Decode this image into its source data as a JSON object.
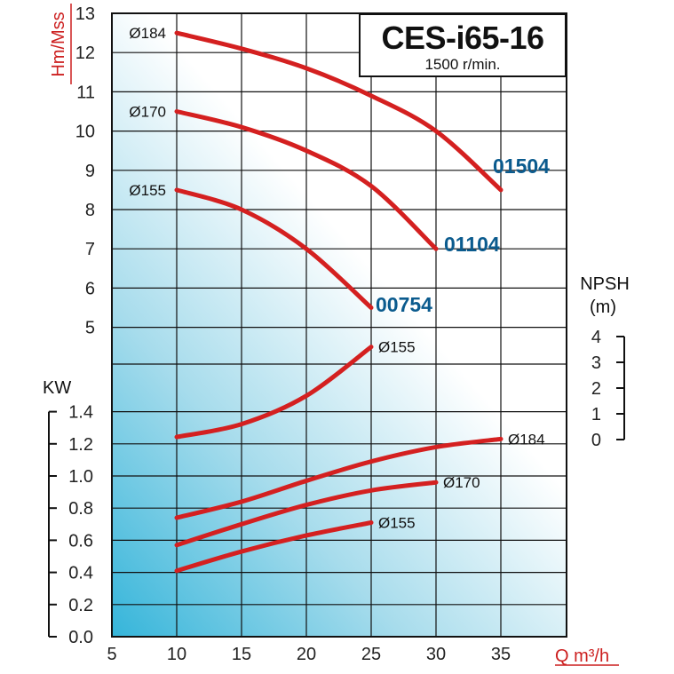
{
  "chart_data": {
    "type": "line",
    "title": "CES-i65-16",
    "subtitle": "1500 r/min.",
    "xlabel": "Q m³/h",
    "x_ticks": [
      5,
      10,
      15,
      20,
      25,
      30,
      35
    ],
    "xlim": [
      5,
      40
    ],
    "head_axis": {
      "label": "Hm/Mss",
      "ticks": [
        5,
        6,
        7,
        8,
        9,
        10,
        11,
        12,
        13
      ],
      "color": "#cc1f1f"
    },
    "power_axis": {
      "label": "KW",
      "ticks": [
        "0.0",
        "0.2",
        "0.4",
        "0.6",
        "0.8",
        "1.0",
        "1.2",
        "1.4"
      ]
    },
    "npsh_axis": {
      "label_line1": "NPSH",
      "label_line2": "(m)",
      "ticks": [
        "0",
        "1",
        "2",
        "3",
        "4"
      ]
    },
    "head_curves": [
      {
        "label": "Ø184",
        "model": "01504",
        "x": [
          10,
          15,
          20,
          25,
          30,
          35
        ],
        "y": [
          12.5,
          12.1,
          11.6,
          10.9,
          10.0,
          8.5
        ]
      },
      {
        "label": "Ø170",
        "model": "01104",
        "x": [
          10,
          15,
          20,
          25,
          30
        ],
        "y": [
          10.5,
          10.1,
          9.5,
          8.6,
          7.0
        ]
      },
      {
        "label": "Ø155",
        "model": "00754",
        "x": [
          10,
          15,
          20,
          25
        ],
        "y": [
          8.5,
          8.0,
          7.0,
          5.5
        ]
      }
    ],
    "npsh_curve": {
      "label": "Ø155",
      "x": [
        10,
        15,
        20,
        25
      ],
      "y": [
        0.1,
        0.6,
        1.7,
        3.6
      ]
    },
    "power_curves": [
      {
        "label": "Ø184",
        "x": [
          10,
          15,
          20,
          25,
          30,
          35
        ],
        "y": [
          0.74,
          0.84,
          0.97,
          1.09,
          1.18,
          1.23
        ]
      },
      {
        "label": "Ø170",
        "x": [
          10,
          15,
          20,
          25,
          30
        ],
        "y": [
          0.57,
          0.7,
          0.82,
          0.91,
          0.96
        ]
      },
      {
        "label": "Ø155",
        "x": [
          10,
          15,
          20,
          25
        ],
        "y": [
          0.41,
          0.53,
          0.63,
          0.71
        ]
      }
    ],
    "grid": true,
    "curve_color": "#d42020",
    "model_color": "#0b5b8e"
  }
}
